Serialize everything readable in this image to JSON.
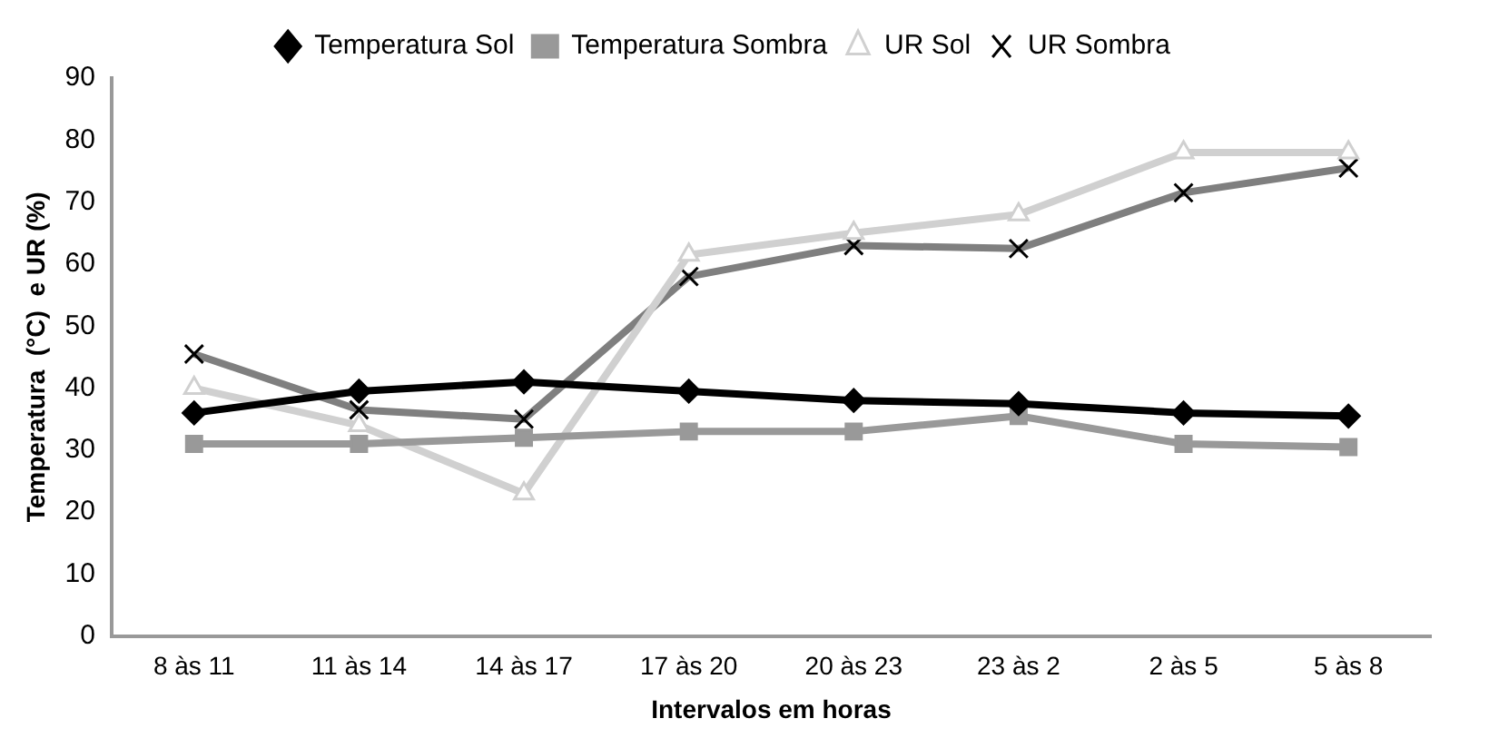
{
  "chart_data": {
    "type": "line",
    "xlabel": "Intervalos em horas",
    "ylabel": "Temperatura  (°C)  e UR (%)",
    "categories": [
      "8 às 11",
      "11 às 14",
      "14 às 17",
      "17 às 20",
      "20 às 23",
      "23 às 2",
      "2 às 5",
      "5 às 8"
    ],
    "series": [
      {
        "name": "Temperatura Sol",
        "color": "#000000",
        "marker": "diamond",
        "values": [
          36,
          39.5,
          41,
          39.5,
          38,
          37.5,
          36,
          35.5
        ]
      },
      {
        "name": "Temperatura Sombra",
        "color": "#999999",
        "marker": "square",
        "values": [
          31,
          31,
          32,
          33,
          33,
          35.5,
          31,
          30.5
        ]
      },
      {
        "name": "UR Sol",
        "color": "#d0d0d0",
        "marker": "triangle",
        "values": [
          40,
          34,
          23,
          61.5,
          65,
          68,
          78,
          78
        ]
      },
      {
        "name": "UR Sombra",
        "color": "#7f7f7f",
        "marker": "cross",
        "values": [
          45.5,
          36.5,
          35,
          58,
          63,
          62.5,
          71.5,
          75.5
        ]
      }
    ],
    "ylim": [
      0,
      90
    ],
    "yticks": [
      0,
      10,
      20,
      30,
      40,
      50,
      60,
      70,
      80,
      90
    ],
    "grid": false,
    "legend": "top"
  }
}
